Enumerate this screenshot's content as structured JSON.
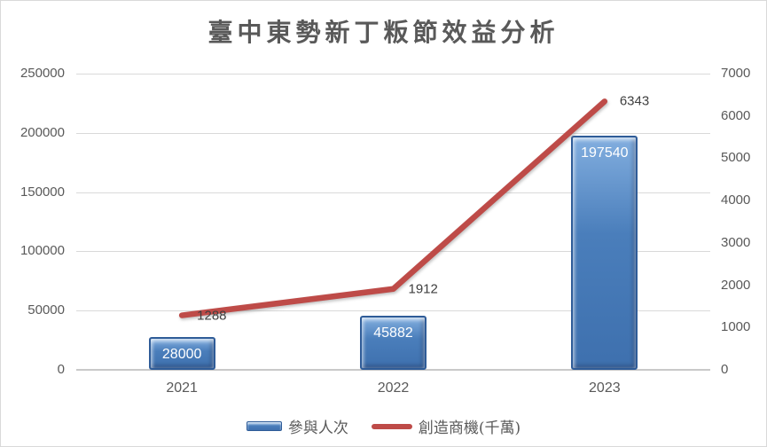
{
  "chart_data": {
    "type": "combo",
    "title": "臺中東勢新丁粄節效益分析",
    "categories": [
      "2021",
      "2022",
      "2023"
    ],
    "series": [
      {
        "name": "參與人次",
        "type": "bar",
        "axis": "left",
        "color": "#4A7EBB",
        "values": [
          28000,
          45882,
          197540
        ],
        "data_labels": [
          "28000",
          "45882",
          "197540"
        ],
        "label_color": "#FFFFFF"
      },
      {
        "name": "創造商機(千萬)",
        "type": "line",
        "axis": "right",
        "color": "#BE4B48",
        "values": [
          1288,
          1912,
          6343
        ],
        "data_labels": [
          "1288",
          "1912",
          "6343"
        ],
        "label_color": "#3F3F3F"
      }
    ],
    "left_axis": {
      "min": 0,
      "max": 250000,
      "step": 50000,
      "tick_labels": [
        "0",
        "50000",
        "100000",
        "150000",
        "200000",
        "250000"
      ]
    },
    "right_axis": {
      "min": 0,
      "max": 7000,
      "step": 1000,
      "tick_labels": [
        "0",
        "1000",
        "2000",
        "3000",
        "4000",
        "5000",
        "6000",
        "7000"
      ]
    },
    "grid": true,
    "legend_position": "bottom",
    "colors": {
      "grid": "#D9D9D9",
      "axis_text": "#595959",
      "title_text": "#595959",
      "bar_border": "#2F5C98"
    }
  }
}
